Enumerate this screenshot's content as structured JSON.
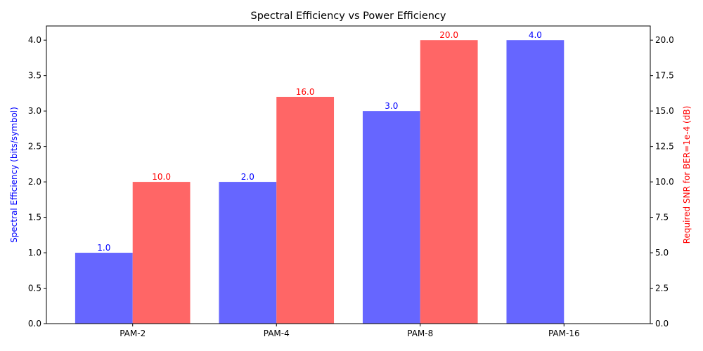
{
  "chart_data": {
    "type": "bar",
    "title": "Spectral Efficiency vs Power Efficiency",
    "xlabel": "",
    "categories": [
      "PAM-2",
      "PAM-4",
      "PAM-8",
      "PAM-16"
    ],
    "series": [
      {
        "name": "",
        "axis": "left",
        "values": [
          1.0,
          2.0,
          3.0,
          4.0
        ],
        "value_labels": [
          "1.0",
          "2.0",
          "3.0",
          "4.0"
        ],
        "color": "#6666ff",
        "label_color": "#0000ff"
      },
      {
        "name": "",
        "axis": "right",
        "values": [
          10.0,
          16.0,
          20.0,
          null
        ],
        "value_labels": [
          "10.0",
          "16.0",
          "20.0",
          ""
        ],
        "color": "#ff6666",
        "label_color": "#ff0000"
      }
    ],
    "y_left": {
      "label": "Spectral Efficiency (bits/symbol)",
      "label_color": "#0000ff",
      "range": [
        0,
        4.2
      ],
      "ticks": [
        0,
        0.5,
        1,
        1.5,
        2,
        2.5,
        3,
        3.5,
        4
      ],
      "tick_labels": [
        "0.0",
        "0.5",
        "1.0",
        "1.5",
        "2.0",
        "2.5",
        "3.0",
        "3.5",
        "4.0"
      ]
    },
    "y_right": {
      "label": "Required SNR for BER=1e-4 (dB)",
      "label_color": "#ff0000",
      "range": [
        0,
        21
      ],
      "ticks": [
        0,
        2.5,
        5,
        7.5,
        10,
        12.5,
        15,
        17.5,
        20
      ],
      "tick_labels": [
        "0.0",
        "2.5",
        "5.0",
        "7.5",
        "10.0",
        "12.5",
        "15.0",
        "17.5",
        "20.0"
      ]
    },
    "grid": false,
    "legend": "none"
  }
}
